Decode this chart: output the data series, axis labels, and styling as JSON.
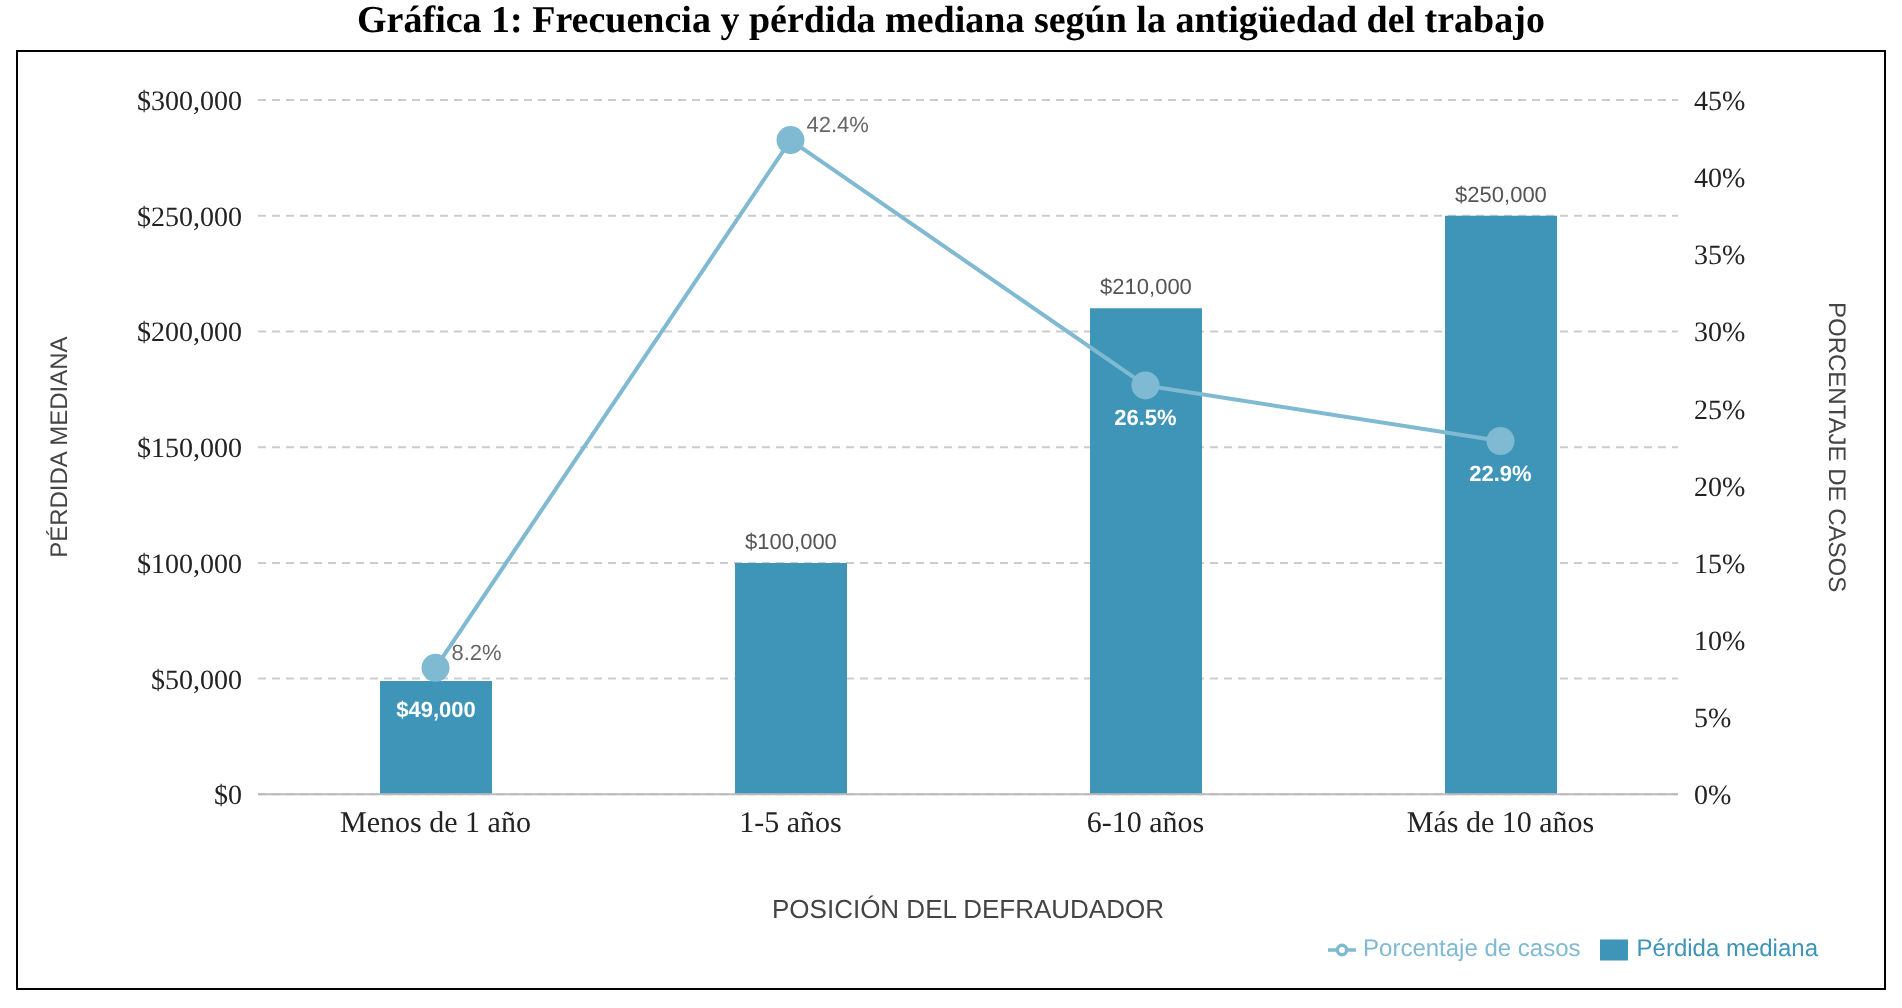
{
  "chart_data": {
    "type": "bar",
    "title": "Gráfica 1: Frecuencia y pérdida mediana según la antigüedad del trabajo",
    "xlabel": "POSICIÓN DEL DEFRAUDADOR",
    "ylabel": "PÉRDIDA MEDIANA",
    "y2label": "PORCENTAJE DE CASOS",
    "categories": [
      "Menos de 1 año",
      "1-5 años",
      "6-10 años",
      "Más de 10 años"
    ],
    "series": [
      {
        "name": "Pérdida mediana",
        "color": "#3e95b7",
        "values": [
          49000,
          100000,
          210000,
          250000
        ],
        "value_labels": [
          "$49,000",
          "$100,000",
          "$210,000",
          "$250,000"
        ]
      },
      {
        "name": "Porcentaje de casos",
        "type": "line",
        "axis": "y2",
        "color": "#7fbad2",
        "values": [
          8.2,
          42.4,
          26.5,
          22.9
        ],
        "value_labels": [
          "8.2%",
          "42.4%",
          "26.5%",
          "22.9%"
        ]
      }
    ],
    "ylim": [
      0,
      300000
    ],
    "yticks": [
      {
        "value": 0,
        "label": "$0"
      },
      {
        "value": 50000,
        "label": "$50,000"
      },
      {
        "value": 100000,
        "label": "$100,000"
      },
      {
        "value": 150000,
        "label": "$150,000"
      },
      {
        "value": 200000,
        "label": "$200,000"
      },
      {
        "value": 250000,
        "label": "$250,000"
      },
      {
        "value": 300000,
        "label": "$300,000"
      }
    ],
    "y2lim": [
      0,
      45
    ],
    "y2ticks": [
      {
        "value": 0,
        "label": "0%"
      },
      {
        "value": 5,
        "label": "5%"
      },
      {
        "value": 10,
        "label": "10%"
      },
      {
        "value": 15,
        "label": "15%"
      },
      {
        "value": 20,
        "label": "20%"
      },
      {
        "value": 25,
        "label": "25%"
      },
      {
        "value": 30,
        "label": "30%"
      },
      {
        "value": 35,
        "label": "35%"
      },
      {
        "value": 40,
        "label": "40%"
      },
      {
        "value": 45,
        "label": "45%"
      }
    ],
    "grid": "y",
    "legend": "bottom right",
    "marker": "circle",
    "line_style": "solid"
  }
}
